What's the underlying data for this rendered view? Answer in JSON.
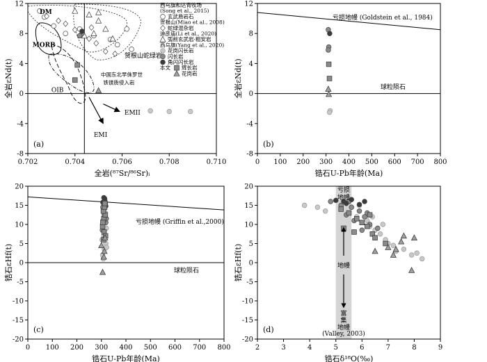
{
  "chart_data": [
    {
      "type": "scatter",
      "panel": "(a)",
      "xlabel": "全岩(⁸⁷Sr/⁸⁶Sr)ᵢ",
      "ylabel": "全岩εNd(t)",
      "xlim": [
        0.702,
        0.71
      ],
      "ylim": [
        -8,
        12
      ],
      "xticks": [
        "0.702",
        "0.704",
        "0.706",
        "0.708",
        "0.710"
      ],
      "yticks": [
        "-8",
        "-4",
        "0",
        "4",
        "8",
        "12"
      ],
      "fields": [
        "DM",
        "MORB",
        "OIB",
        "EMI",
        "EMII"
      ],
      "annotations": [
        "贺根山蛇绿岩",
        "中国东北早侏罗世",
        "铁镁质侵入岩"
      ],
      "legend": [
        "西乌旗和达青牧场",
        "(Song et al., 2015)",
        "玄武质岩石",
        "贺根山(Miao et al., 2008)",
        "蛇绿混杂岩",
        "迪彦庙(Li et al., 2020)",
        "弧前玄武岩-粗安岩",
        "西乌旗(Yang et al., 2020)",
        "花岗闪长岩",
        "闪长岩",
        "角闪闪长岩",
        "本文",
        "辉长岩",
        "花岗岩"
      ],
      "series": [
        {
          "name": "玄武质岩石",
          "marker": "open-circle",
          "points": [
            [
              0.7025,
              11.0
            ],
            [
              0.7027,
              10.2
            ],
            [
              0.7031,
              9.0
            ],
            [
              0.7036,
              8.0
            ],
            [
              0.7042,
              8.6
            ],
            [
              0.7048,
              7.7
            ],
            [
              0.7055,
              7.2
            ],
            [
              0.7058,
              6.5
            ],
            [
              0.7062,
              8.6
            ],
            [
              0.7064,
              5.9
            ]
          ]
        },
        {
          "name": "蛇绿混杂岩",
          "marker": "open-diamond",
          "points": [
            [
              0.7028,
              10.3
            ],
            [
              0.7033,
              9.7
            ],
            [
              0.7036,
              9.3
            ],
            [
              0.704,
              8.5
            ],
            [
              0.7043,
              8.1
            ],
            [
              0.7046,
              7.3
            ],
            [
              0.7049,
              6.7
            ],
            [
              0.7053,
              5.6
            ],
            [
              0.7057,
              5.3
            ],
            [
              0.7047,
              8.8
            ]
          ]
        },
        {
          "name": "弧前玄武岩-粗安岩",
          "marker": "open-triangle",
          "points": [
            [
              0.704,
              11.0
            ],
            [
              0.7046,
              10.5
            ],
            [
              0.705,
              9.7
            ],
            [
              0.7053,
              8.6
            ],
            [
              0.7048,
              8.0
            ],
            [
              0.7056,
              7.3
            ],
            [
              0.7044,
              7.7
            ],
            [
              0.705,
              10.8
            ]
          ]
        },
        {
          "name": "花岗闪长岩",
          "marker": "light-circle",
          "points": [
            [
              0.7072,
              -2.3
            ],
            [
              0.708,
              -2.4
            ],
            [
              0.7089,
              -2.4
            ]
          ]
        },
        {
          "name": "闪长岩",
          "marker": "mid-circle",
          "points": [
            [
              0.7043,
              8.0
            ],
            [
              0.7042,
              7.7
            ]
          ]
        },
        {
          "name": "角闪闪长岩",
          "marker": "dark-circle",
          "points": [
            [
              0.7043,
              8.3
            ]
          ]
        },
        {
          "name": "辉长岩",
          "marker": "square",
          "points": [
            [
              0.7041,
              3.8
            ],
            [
              0.704,
              1.8
            ]
          ]
        },
        {
          "name": "花岗岩",
          "marker": "triangle",
          "points": [
            [
              0.705,
              0.4
            ]
          ]
        }
      ]
    },
    {
      "type": "scatter",
      "panel": "(b)",
      "xlabel": "锆石U-Pb年龄(Ma)",
      "ylabel": "全岩εNd(t)",
      "xlim": [
        0,
        800
      ],
      "ylim": [
        -8,
        12
      ],
      "xticks": [
        "0",
        "100",
        "200",
        "300",
        "400",
        "500",
        "600",
        "700",
        "800"
      ],
      "yticks": [
        "-8",
        "-4",
        "0",
        "4",
        "8",
        "12"
      ],
      "lines": [
        {
          "name": "亏损地幔 (Goldstein et al., 1984)",
          "x": [
            0,
            800
          ],
          "y": [
            10.8,
            8.5
          ]
        },
        {
          "name": "球粒陨石",
          "x": [
            0,
            800
          ],
          "y": [
            0,
            0
          ]
        }
      ],
      "series": [
        {
          "name": "花岗闪长岩",
          "marker": "light-circle",
          "points": [
            [
              318,
              -2.3
            ],
            [
              315,
              -2.5
            ]
          ]
        },
        {
          "name": "闪长岩",
          "marker": "mid-circle",
          "points": [
            [
              310,
              8.5
            ],
            [
              312,
              6.2
            ],
            [
              310,
              5.8
            ]
          ]
        },
        {
          "name": "角闪闪长岩",
          "marker": "dark-circle",
          "points": [
            [
              316,
              8.0
            ]
          ]
        },
        {
          "name": "辉长岩",
          "marker": "square",
          "points": [
            [
              312,
              3.9
            ],
            [
              315,
              2.0
            ]
          ]
        },
        {
          "name": "花岗岩",
          "marker": "triangle",
          "points": [
            [
              310,
              0.6
            ],
            [
              312,
              -0.1
            ]
          ]
        }
      ]
    },
    {
      "type": "scatter",
      "panel": "(c)",
      "xlabel": "锆石U-Pb年龄(Ma)",
      "ylabel": "锆石εHf(t)",
      "xlim": [
        0,
        800
      ],
      "ylim": [
        -20,
        20
      ],
      "xticks": [
        "0",
        "100",
        "200",
        "300",
        "400",
        "500",
        "600",
        "700",
        "800"
      ],
      "yticks": [
        "-20",
        "-15",
        "-10",
        "-5",
        "0",
        "5",
        "10",
        "15",
        "20"
      ],
      "lines": [
        {
          "name": "亏损地幔 (Griffin et al.,2000)",
          "x": [
            0,
            800
          ],
          "y": [
            17.2,
            13.8
          ]
        },
        {
          "name": "球粒陨石",
          "x": [
            0,
            800
          ],
          "y": [
            0,
            0
          ]
        }
      ],
      "series": [
        {
          "name": "花岗闪长岩",
          "marker": "light-circle",
          "points": [
            [
              305,
              2.0
            ],
            [
              312,
              3.5
            ],
            [
              318,
              5.0
            ],
            [
              310,
              7.0
            ],
            [
              320,
              9.0
            ],
            [
              306,
              11.0
            ],
            [
              316,
              13.0
            ],
            [
              309,
              15.0
            ],
            [
              314,
              16.5
            ],
            [
              303,
              6.0
            ],
            [
              321,
              4.0
            ],
            [
              308,
              1.0
            ]
          ]
        },
        {
          "name": "闪长岩",
          "marker": "mid-circle",
          "points": [
            [
              306,
              14.5
            ],
            [
              312,
              12.5
            ],
            [
              318,
              10.5
            ],
            [
              304,
              8.5
            ],
            [
              316,
              15.5
            ],
            [
              309,
              13.5
            ],
            [
              320,
              11.5
            ],
            [
              311,
              16.0
            ]
          ]
        },
        {
          "name": "角闪闪长岩",
          "marker": "dark-circle",
          "points": [
            [
              310,
              17.0
            ],
            [
              315,
              16.0
            ],
            [
              306,
              15.8
            ],
            [
              318,
              14.8
            ],
            [
              313,
              16.8
            ]
          ]
        },
        {
          "name": "辉长岩",
          "marker": "square",
          "points": [
            [
              305,
              9.5
            ],
            [
              310,
              11.5
            ],
            [
              316,
              12.5
            ],
            [
              308,
              13.5
            ],
            [
              313,
              14.5
            ],
            [
              306,
              10.5
            ],
            [
              311,
              8.0
            ],
            [
              317,
              7.0
            ],
            [
              309,
              6.0
            ],
            [
              314,
              15.5
            ]
          ]
        },
        {
          "name": "花岗岩",
          "marker": "triangle",
          "points": [
            [
              300,
              4.5
            ],
            [
              310,
              1.5
            ],
            [
              315,
              6.5
            ],
            [
              305,
              -2.5
            ],
            [
              312,
              3.0
            ]
          ]
        }
      ]
    },
    {
      "type": "scatter",
      "panel": "(d)",
      "xlabel": "锆石δ¹⁸O(‰)",
      "ylabel": "锆石εHf(t)",
      "xlim": [
        2,
        9
      ],
      "ylim": [
        -20,
        20
      ],
      "xticks": [
        "2",
        "3",
        "4",
        "5",
        "6",
        "7",
        "8",
        "9"
      ],
      "yticks": [
        "-20",
        "-15",
        "-10",
        "-5",
        "0",
        "5",
        "10",
        "15",
        "20"
      ],
      "band": {
        "x": [
          5.0,
          5.6
        ],
        "label_top": "亏损地幔",
        "label_mid": "地幔",
        "label_bottom": "富集地幔",
        "source": "(Valley, 2003)"
      },
      "series": [
        {
          "name": "花岗闪长岩",
          "marker": "light-circle",
          "points": [
            [
              3.8,
              15.0
            ],
            [
              4.3,
              14.5
            ],
            [
              4.6,
              13.5
            ],
            [
              5.2,
              14.0
            ],
            [
              5.5,
              13.0
            ],
            [
              5.8,
              12.0
            ],
            [
              6.0,
              10.5
            ],
            [
              6.3,
              9.5
            ],
            [
              6.5,
              8.5
            ],
            [
              6.7,
              7.5
            ],
            [
              6.9,
              6.0
            ],
            [
              7.0,
              5.0
            ],
            [
              7.2,
              4.5
            ],
            [
              7.6,
              3.5
            ],
            [
              7.9,
              2.0
            ],
            [
              8.1,
              2.5
            ],
            [
              8.3,
              1.0
            ],
            [
              6.4,
              12.0
            ],
            [
              6.8,
              10.0
            ],
            [
              7.3,
              3.0
            ],
            [
              5.9,
              15.0
            ],
            [
              6.2,
              11.0
            ]
          ]
        },
        {
          "name": "闪长岩",
          "marker": "mid-circle",
          "points": [
            [
              4.8,
              16.0
            ],
            [
              5.2,
              15.0
            ],
            [
              5.6,
              14.5
            ],
            [
              5.9,
              13.5
            ],
            [
              6.1,
              12.0
            ],
            [
              5.7,
              11.0
            ],
            [
              6.3,
              10.0
            ],
            [
              5.5,
              16.0
            ],
            [
              6.0,
              8.5
            ],
            [
              6.6,
              9.0
            ],
            [
              5.4,
              12.5
            ],
            [
              6.2,
              13.0
            ]
          ]
        },
        {
          "name": "角闪闪长岩",
          "marker": "dark-circle",
          "points": [
            [
              5.0,
              16.3
            ],
            [
              5.3,
              16.0
            ],
            [
              5.6,
              16.5
            ],
            [
              5.9,
              15.2
            ],
            [
              6.1,
              16.0
            ],
            [
              5.4,
              15.5
            ]
          ]
        },
        {
          "name": "辉长岩",
          "marker": "square",
          "points": [
            [
              5.5,
              13.0
            ],
            [
              5.8,
              11.5
            ],
            [
              6.0,
              10.5
            ],
            [
              6.2,
              9.5
            ],
            [
              6.4,
              7.5
            ],
            [
              6.5,
              6.5
            ],
            [
              6.9,
              5.0
            ],
            [
              5.7,
              8.0
            ],
            [
              5.3,
              9.0
            ],
            [
              6.3,
              12.5
            ],
            [
              5.2,
              14.0
            ]
          ]
        },
        {
          "name": "花岗岩",
          "marker": "triangle",
          "points": [
            [
              7.0,
              4.0
            ],
            [
              7.2,
              2.0
            ],
            [
              7.5,
              5.5
            ],
            [
              7.6,
              7.0
            ],
            [
              8.0,
              6.5
            ],
            [
              7.3,
              3.5
            ],
            [
              6.5,
              3.0
            ],
            [
              7.9,
              -2.0
            ]
          ]
        }
      ]
    }
  ]
}
